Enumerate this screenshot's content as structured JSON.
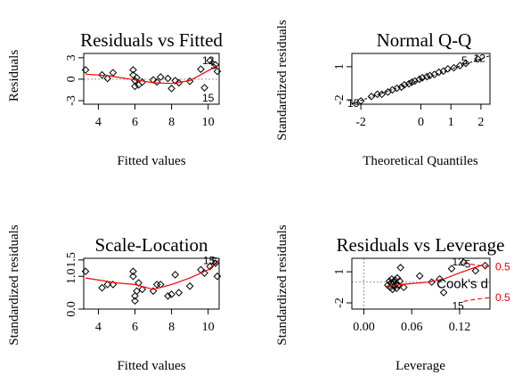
{
  "colors": {
    "points": "#000000",
    "smoother": "#ff0000",
    "reference": "#999999",
    "cook": "#ff0000"
  },
  "chart_data": [
    {
      "id": "rvf",
      "type": "scatter",
      "title": "Residuals vs Fitted",
      "xlabel": "Fitted values",
      "ylabel": "Residuals",
      "xlim": [
        3.2,
        10.6
      ],
      "ylim": [
        -3.5,
        3.6
      ],
      "xticks": [
        "4",
        "6",
        "8",
        "10"
      ],
      "yticks": [
        "-3",
        "0",
        "3"
      ],
      "reference_line": 0,
      "points": [
        [
          3.3,
          1.3
        ],
        [
          4.2,
          0.6
        ],
        [
          4.5,
          0.1
        ],
        [
          4.8,
          0.9
        ],
        [
          5.9,
          1.3
        ],
        [
          5.9,
          0.6
        ],
        [
          6.0,
          -0.2
        ],
        [
          6.0,
          -1.0
        ],
        [
          6.1,
          0.2
        ],
        [
          6.2,
          -0.8
        ],
        [
          6.4,
          -0.4
        ],
        [
          7.0,
          -0.1
        ],
        [
          7.2,
          -0.4
        ],
        [
          7.4,
          0.3
        ],
        [
          7.8,
          0.1
        ],
        [
          8.0,
          -1.3
        ],
        [
          8.2,
          -0.2
        ],
        [
          8.4,
          -0.5
        ],
        [
          9.0,
          -0.3
        ],
        [
          9.6,
          1.4
        ],
        [
          9.8,
          -1.2
        ],
        [
          10.1,
          2.6
        ],
        [
          10.4,
          2.0
        ],
        [
          10.5,
          1.1
        ]
      ],
      "smoother": [
        [
          3.3,
          0.7
        ],
        [
          4.5,
          0.5
        ],
        [
          6.0,
          -0.1
        ],
        [
          7.0,
          -0.5
        ],
        [
          8.0,
          -0.6
        ],
        [
          9.0,
          -0.2
        ],
        [
          10.0,
          1.2
        ],
        [
          10.6,
          2.0
        ]
      ],
      "labels": [
        {
          "text": "12",
          "x": 10.0,
          "y": 2.6
        },
        {
          "text": "5",
          "x": 10.3,
          "y": 1.9
        },
        {
          "text": "15",
          "x": 10.0,
          "y": -2.6
        }
      ]
    },
    {
      "id": "qq",
      "type": "scatter",
      "title": "Normal Q-Q",
      "xlabel": "Theoretical Quantiles",
      "ylabel": "Standardized residuals",
      "xlim": [
        -2.3,
        2.3
      ],
      "ylim": [
        -2.4,
        2.2
      ],
      "xticks": [
        "-2",
        "0",
        "1",
        "2"
      ],
      "yticks": [
        "-2",
        "1"
      ],
      "points": [
        [
          -2.0,
          -2.1
        ],
        [
          -1.65,
          -1.7
        ],
        [
          -1.45,
          -1.5
        ],
        [
          -1.3,
          -1.5
        ],
        [
          -1.1,
          -1.3
        ],
        [
          -0.95,
          -1.1
        ],
        [
          -0.8,
          -0.95
        ],
        [
          -0.65,
          -0.85
        ],
        [
          -0.55,
          -0.65
        ],
        [
          -0.4,
          -0.55
        ],
        [
          -0.3,
          -0.4
        ],
        [
          -0.2,
          -0.3
        ],
        [
          -0.05,
          -0.15
        ],
        [
          0.05,
          0.0
        ],
        [
          0.2,
          0.1
        ],
        [
          0.3,
          0.2
        ],
        [
          0.45,
          0.3
        ],
        [
          0.6,
          0.5
        ],
        [
          0.75,
          0.6
        ],
        [
          0.9,
          0.8
        ],
        [
          1.1,
          0.9
        ],
        [
          1.3,
          1.1
        ],
        [
          1.5,
          1.3
        ],
        [
          1.9,
          1.7
        ]
      ],
      "reference_segment": [
        [
          -2.3,
          -2.35
        ],
        [
          2.3,
          2.0
        ]
      ],
      "labels": [
        {
          "text": "15",
          "x": -2.25,
          "y": -2.3
        },
        {
          "text": "5",
          "x": 1.45,
          "y": 1.55
        },
        {
          "text": "12",
          "x": 1.95,
          "y": 1.75
        }
      ]
    },
    {
      "id": "sl",
      "type": "scatter",
      "title": "Scale-Location",
      "xlabel": "Fitted values",
      "ylabel": "Standardized residuals",
      "xlim": [
        3.2,
        10.6
      ],
      "ylim": [
        0.0,
        1.55
      ],
      "xticks": [
        "4",
        "6",
        "8",
        "10"
      ],
      "yticks": [
        "0.0",
        "1.0",
        "1.5"
      ],
      "points": [
        [
          3.3,
          1.15
        ],
        [
          4.2,
          0.65
        ],
        [
          4.5,
          0.75
        ],
        [
          4.8,
          0.75
        ],
        [
          5.9,
          1.15
        ],
        [
          5.9,
          1.0
        ],
        [
          6.0,
          0.4
        ],
        [
          6.0,
          0.25
        ],
        [
          6.1,
          0.55
        ],
        [
          6.2,
          0.8
        ],
        [
          6.4,
          0.6
        ],
        [
          7.0,
          0.55
        ],
        [
          7.2,
          0.75
        ],
        [
          7.4,
          0.75
        ],
        [
          7.8,
          0.4
        ],
        [
          8.0,
          0.45
        ],
        [
          8.2,
          1.05
        ],
        [
          8.4,
          0.5
        ],
        [
          9.0,
          0.7
        ],
        [
          9.6,
          1.2
        ],
        [
          9.8,
          1.1
        ],
        [
          10.1,
          1.3
        ],
        [
          10.4,
          1.4
        ],
        [
          10.5,
          1.0
        ]
      ],
      "smoother": [
        [
          3.3,
          0.95
        ],
        [
          5.0,
          0.8
        ],
        [
          6.0,
          0.75
        ],
        [
          7.0,
          0.6
        ],
        [
          8.0,
          0.75
        ],
        [
          9.0,
          0.95
        ],
        [
          10.0,
          1.2
        ],
        [
          10.6,
          1.5
        ]
      ],
      "labels": [
        {
          "text": "15",
          "x": 10.05,
          "y": 1.48
        },
        {
          "text": "5",
          "x": 10.35,
          "y": 1.45
        }
      ]
    },
    {
      "id": "rvl",
      "type": "scatter",
      "title": "Residuals vs Leverage",
      "xlabel": "Leverage",
      "ylabel": "Standardized residuals",
      "xlim": [
        -0.015,
        0.158
      ],
      "ylim": [
        -2.6,
        2.3
      ],
      "xticks": [
        "0.00",
        "0.06",
        "0.12"
      ],
      "yticks": [
        "-2",
        "1"
      ],
      "reference_line": 0,
      "reference_vline": 0,
      "points": [
        [
          0.03,
          -0.3
        ],
        [
          0.032,
          0.1
        ],
        [
          0.033,
          -0.5
        ],
        [
          0.034,
          -0.1
        ],
        [
          0.035,
          0.3
        ],
        [
          0.036,
          -0.7
        ],
        [
          0.037,
          0.0
        ],
        [
          0.038,
          -0.4
        ],
        [
          0.039,
          0.2
        ],
        [
          0.04,
          -0.2
        ],
        [
          0.041,
          -0.6
        ],
        [
          0.042,
          0.4
        ],
        [
          0.043,
          -0.3
        ],
        [
          0.045,
          0.1
        ],
        [
          0.046,
          1.4
        ],
        [
          0.05,
          -0.5
        ],
        [
          0.07,
          0.6
        ],
        [
          0.085,
          0.0
        ],
        [
          0.095,
          0.3
        ],
        [
          0.1,
          -1.0
        ],
        [
          0.11,
          1.3
        ],
        [
          0.125,
          1.9
        ],
        [
          0.14,
          1.1
        ],
        [
          0.152,
          1.6
        ]
      ],
      "smoother": [
        [
          0.028,
          -0.4
        ],
        [
          0.05,
          -0.2
        ],
        [
          0.08,
          0.0
        ],
        [
          0.1,
          0.3
        ],
        [
          0.12,
          0.9
        ],
        [
          0.15,
          1.7
        ]
      ],
      "cook_upper": [
        [
          0.125,
          1.85
        ],
        [
          0.14,
          1.65
        ],
        [
          0.158,
          1.5
        ]
      ],
      "cook_lower": [
        [
          0.125,
          -1.85
        ],
        [
          0.14,
          -1.65
        ],
        [
          0.158,
          -1.5
        ]
      ],
      "cook_label": "Cook's d",
      "cook_tick_labels": [
        "0.5",
        "0.5"
      ],
      "labels": [
        {
          "text": "12",
          "x": 0.118,
          "y": 1.95
        },
        {
          "text": "5",
          "x": 0.13,
          "y": 1.75
        },
        {
          "text": "15",
          "x": 0.118,
          "y": -2.3
        }
      ]
    }
  ]
}
